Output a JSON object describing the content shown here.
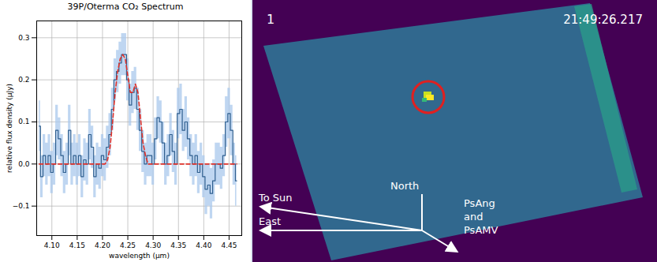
{
  "chart_data": {
    "type": "line",
    "title": "39P/Oterma CO₂ Spectrum",
    "x_label": "wavelength (μm)",
    "y_label": "relative flux density (μJy)",
    "x": [
      4.075,
      4.08,
      4.085,
      4.09,
      4.095,
      4.1,
      4.105,
      4.11,
      4.115,
      4.12,
      4.125,
      4.13,
      4.135,
      4.14,
      4.145,
      4.15,
      4.155,
      4.16,
      4.165,
      4.17,
      4.175,
      4.18,
      4.185,
      4.19,
      4.195,
      4.2,
      4.205,
      4.21,
      4.215,
      4.22,
      4.225,
      4.23,
      4.235,
      4.24,
      4.245,
      4.25,
      4.255,
      4.26,
      4.265,
      4.27,
      4.275,
      4.28,
      4.285,
      4.29,
      4.295,
      4.3,
      4.305,
      4.31,
      4.315,
      4.32,
      4.325,
      4.33,
      4.335,
      4.34,
      4.345,
      4.35,
      4.355,
      4.36,
      4.365,
      4.37,
      4.375,
      4.38,
      4.385,
      4.39,
      4.395,
      4.4,
      4.405,
      4.41,
      4.415,
      4.42,
      4.425,
      4.43,
      4.435,
      4.44,
      4.445,
      4.45,
      4.455,
      4.46,
      4.465
    ],
    "series": [
      {
        "color": "#2f5f8f",
        "line_style": "steps",
        "values": [
          0.09,
          -0.03,
          0.02,
          0,
          0.02,
          -0.02,
          0,
          0.08,
          0.06,
          0.02,
          -0.02,
          0,
          0.08,
          0,
          0.02,
          0,
          0.02,
          -0.03,
          0.01,
          0,
          0.07,
          0.04,
          -0.03,
          0,
          -0.01,
          0.02,
          0.01,
          0.04,
          0.07,
          0.13,
          0.2,
          0.22,
          0.24,
          0.26,
          0.26,
          0.2,
          0.14,
          0.17,
          0.18,
          0.13,
          0.08,
          0.03,
          0,
          0.02,
          0.02,
          0,
          0.06,
          0.11,
          0.1,
          0.05,
          0,
          0.02,
          0.07,
          0.03,
          0,
          0.12,
          0.13,
          0.08,
          0.1,
          0.06,
          0.02,
          0,
          0.02,
          -0.02,
          0,
          -0.03,
          -0.06,
          -0.05,
          -0.07,
          -0.04,
          0,
          0,
          -0.01,
          0.02,
          0.1,
          0.12,
          0.08,
          0,
          -0.04
        ],
        "errors": [
          0.06,
          0.05,
          0.05,
          0.05,
          0.05,
          0.05,
          0.05,
          0.06,
          0.05,
          0.05,
          0.05,
          0.05,
          0.06,
          0.05,
          0.05,
          0.05,
          0.05,
          0.05,
          0.05,
          0.05,
          0.06,
          0.05,
          0.05,
          0.05,
          0.05,
          0.05,
          0.05,
          0.05,
          0.05,
          0.05,
          0.05,
          0.05,
          0.05,
          0.05,
          0.05,
          0.05,
          0.05,
          0.05,
          0.05,
          0.05,
          0.05,
          0.05,
          0.05,
          0.05,
          0.05,
          0.05,
          0.05,
          0.05,
          0.05,
          0.05,
          0.05,
          0.05,
          0.05,
          0.05,
          0.05,
          0.06,
          0.06,
          0.05,
          0.06,
          0.05,
          0.05,
          0.05,
          0.05,
          0.05,
          0.05,
          0.05,
          0.06,
          0.05,
          0.06,
          0.05,
          0.05,
          0.05,
          0.05,
          0.05,
          0.06,
          0.06,
          0.06,
          0.05,
          0.06
        ]
      },
      {
        "color": "#e0322a",
        "line_style": "dashed",
        "values": [
          0,
          0,
          0,
          0,
          0,
          0,
          0,
          0,
          0,
          0,
          0,
          0,
          0,
          0,
          0,
          0,
          0,
          0,
          0,
          0,
          0,
          0,
          0,
          0,
          0,
          0,
          0,
          0.01,
          0.04,
          0.1,
          0.17,
          0.22,
          0.25,
          0.26,
          0.25,
          0.21,
          0.17,
          0.17,
          0.19,
          0.17,
          0.11,
          0.05,
          0.02,
          0,
          0,
          0,
          0,
          0,
          0,
          0,
          0,
          0,
          0,
          0,
          0,
          0,
          0,
          0,
          0,
          0,
          0,
          0,
          0,
          0,
          0,
          0,
          0,
          0,
          0,
          0,
          0,
          0,
          0,
          0,
          0,
          0,
          0,
          0,
          0
        ]
      }
    ],
    "xlim": [
      4.07,
      4.475
    ],
    "xticks": [
      {
        "value": 4.1,
        "label": "4.10"
      },
      4.15,
      {
        "value": 4.2,
        "label": "4.20"
      },
      4.25,
      {
        "value": 4.3,
        "label": "4.30"
      },
      4.35,
      {
        "value": 4.4,
        "label": "4.40"
      },
      4.45
    ],
    "ylim": [
      -0.17,
      0.34
    ],
    "yticks": [
      {
        "value": -0.1,
        "label": "−0.1"
      },
      {
        "value": 0,
        "label": "0.0"
      },
      0.1,
      0.2,
      0.3
    ],
    "grid": true
  },
  "image_panel": {
    "frame_number": "1",
    "timestamp": "21:49:26.217",
    "north": "North",
    "to_sun": "To Sun",
    "east": "East",
    "motion": "PsAng and PsAMV"
  }
}
